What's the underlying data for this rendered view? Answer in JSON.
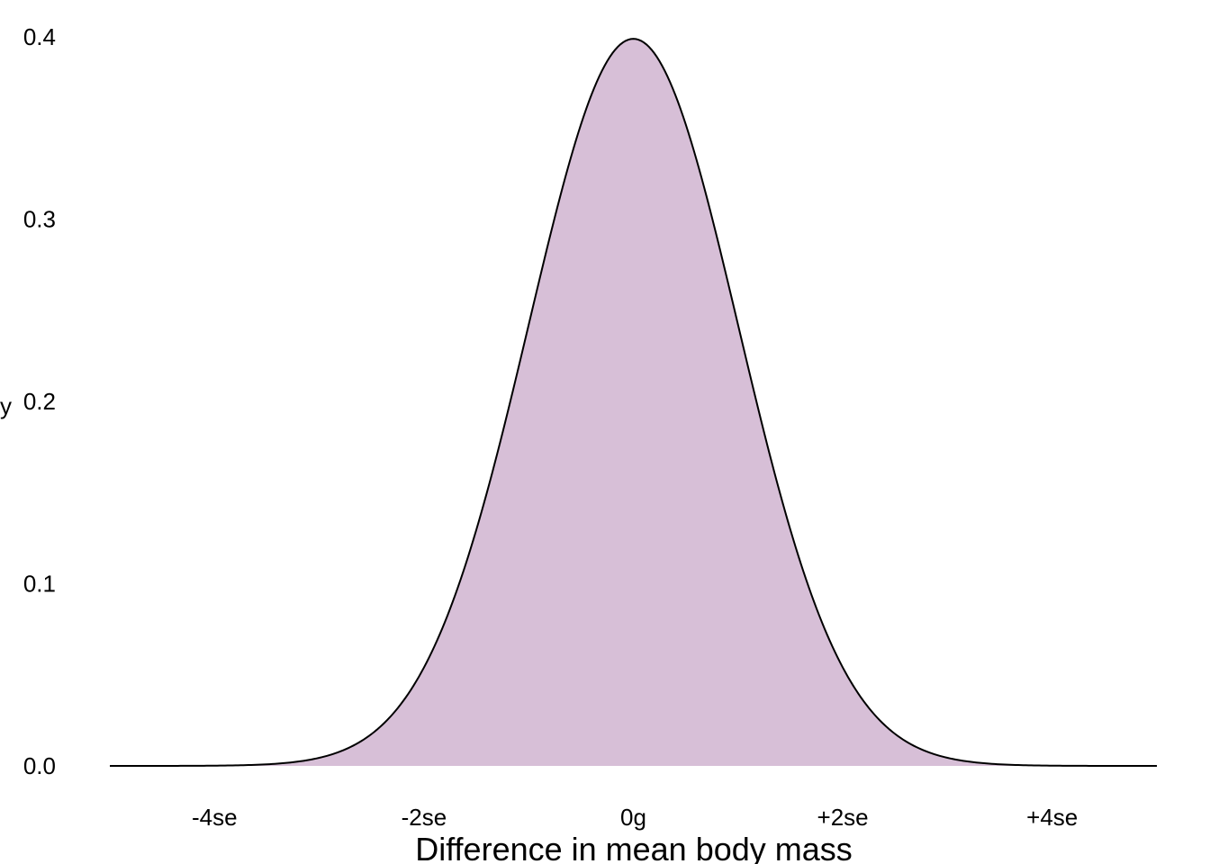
{
  "chart_data": {
    "type": "area",
    "title": "",
    "xlabel": "Difference in mean body mass",
    "ylabel": "y",
    "xlim": [
      -5,
      5
    ],
    "ylim": [
      0,
      0.4
    ],
    "grid": false,
    "legend": "none",
    "x_ticks": [
      {
        "value": -4,
        "label": "-4se"
      },
      {
        "value": -2,
        "label": "-2se"
      },
      {
        "value": 0,
        "label": "0g"
      },
      {
        "value": 2,
        "label": "+2se"
      },
      {
        "value": 4,
        "label": "+4se"
      }
    ],
    "y_ticks": [
      {
        "value": 0.0,
        "label": "0.0"
      },
      {
        "value": 0.1,
        "label": "0.1"
      },
      {
        "value": 0.2,
        "label": "0.2"
      },
      {
        "value": 0.3,
        "label": "0.3"
      },
      {
        "value": 0.4,
        "label": "0.4"
      }
    ],
    "series": [
      {
        "distribution": "normal",
        "mean": 0,
        "sd": 1,
        "fill": "#d7bfd7",
        "stroke": "#000000",
        "x": [
          -5,
          -4.5,
          -4,
          -3.5,
          -3,
          -2.5,
          -2,
          -1.5,
          -1,
          -0.5,
          0,
          0.5,
          1,
          1.5,
          2,
          2.5,
          3,
          3.5,
          4,
          4.5,
          5
        ],
        "y": [
          0.0,
          0.0,
          0.0001,
          0.0009,
          0.0044,
          0.0175,
          0.054,
          0.1295,
          0.242,
          0.3521,
          0.3989,
          0.3521,
          0.242,
          0.1295,
          0.054,
          0.0175,
          0.0044,
          0.0009,
          0.0001,
          0.0,
          0.0
        ]
      }
    ]
  }
}
